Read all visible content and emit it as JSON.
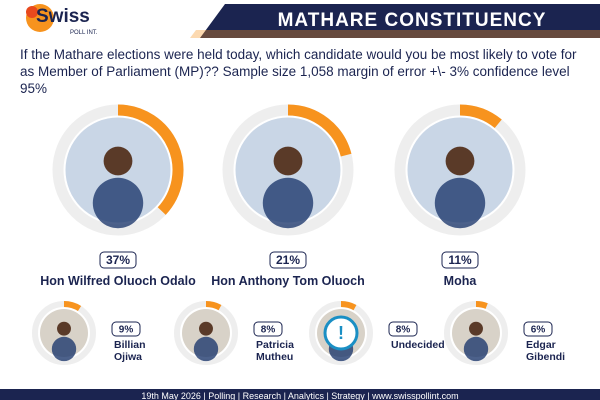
{
  "header": {
    "logo": "Swiss",
    "logo_sub": "POLL INT.",
    "title": "MATHARE CONSTITUENCY"
  },
  "chart_data": {
    "type": "donut",
    "title": "If the Mathare elections were held today, which candidate would you be most likely to vote for as Member of Parliament (MP)?? Sample size 1,058 margin of error +\\- 3% confidence level 95%",
    "categories": [
      "Hon Wilfred Oluoch Odalo",
      "Hon Anthony Tom Oluoch",
      "Moha",
      "Billian Ojiwa",
      "Patricia Mutheu",
      "Undecided",
      "Edgar Gibendi"
    ],
    "values": [
      37,
      21,
      11,
      9,
      8,
      8,
      6
    ],
    "value_labels": [
      "37%",
      "21%",
      "11%",
      "9%",
      "8%",
      "8%",
      "6%"
    ],
    "color": "#f7931e"
  },
  "footer": "19th May 2026 | Polling | Research | Analytics | Strategy | www.swisspollint.com"
}
